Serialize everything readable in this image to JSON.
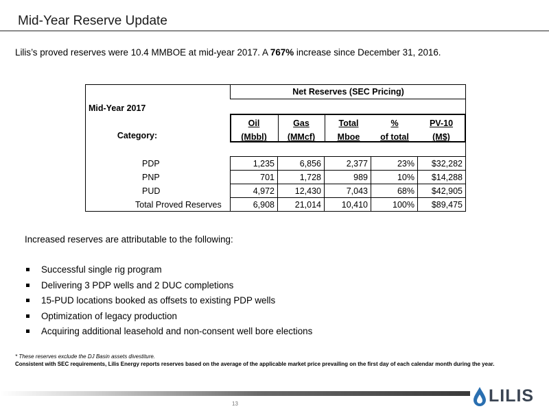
{
  "title": "Mid-Year Reserve Update",
  "intro": {
    "prefix": "Lilis’s proved reserves were 10.4 MMBOE at mid-year 2017. A ",
    "highlight": "767%",
    "suffix": " increase since December 31, 2016."
  },
  "table": {
    "group_header": "Net Reserves (SEC Pricing)",
    "period_label": "Mid-Year 2017",
    "category_label": "Category:",
    "columns": [
      {
        "line1": "Oil",
        "line2": "(Mbbl)"
      },
      {
        "line1": "Gas",
        "line2": "(MMcf)"
      },
      {
        "line1": "Total",
        "line2": "Mboe"
      },
      {
        "line1": "%",
        "line2": "of total"
      },
      {
        "line1": "PV-10",
        "line2": "(M$)"
      }
    ],
    "rows": [
      {
        "label": "PDP",
        "values": [
          "1,235",
          "6,856",
          "2,377",
          "23%",
          "$32,282"
        ]
      },
      {
        "label": "PNP",
        "values": [
          "701",
          "1,728",
          "989",
          "10%",
          "$14,288"
        ]
      },
      {
        "label": "PUD",
        "values": [
          "4,972",
          "12,430",
          "7,043",
          "68%",
          "$42,905"
        ]
      },
      {
        "label": "Total Proved Reserves",
        "values": [
          "6,908",
          "21,014",
          "10,410",
          "100%",
          "$89,475"
        ]
      }
    ]
  },
  "lead": "Increased reserves are attributable to the following:",
  "bullets": [
    "Successful single rig program",
    "Delivering 3 PDP wells and 2 DUC completions",
    "15-PUD locations booked as offsets to existing PDP wells",
    "Optimization of legacy production",
    "Acquiring additional leasehold and non-consent well bore elections"
  ],
  "notes": {
    "asterisk": "* These reserves exclude the DJ Basin assets divestiture.",
    "sec": "Consistent with SEC requirements, Lilis Energy reports reserves based on the average of the applicable market price prevailing on the first day of each calendar month during the year."
  },
  "footer": {
    "page_number": "13",
    "logo_text": "LILIS",
    "logo_color": "#3a4452",
    "drop_color": "#2a6fb0"
  }
}
